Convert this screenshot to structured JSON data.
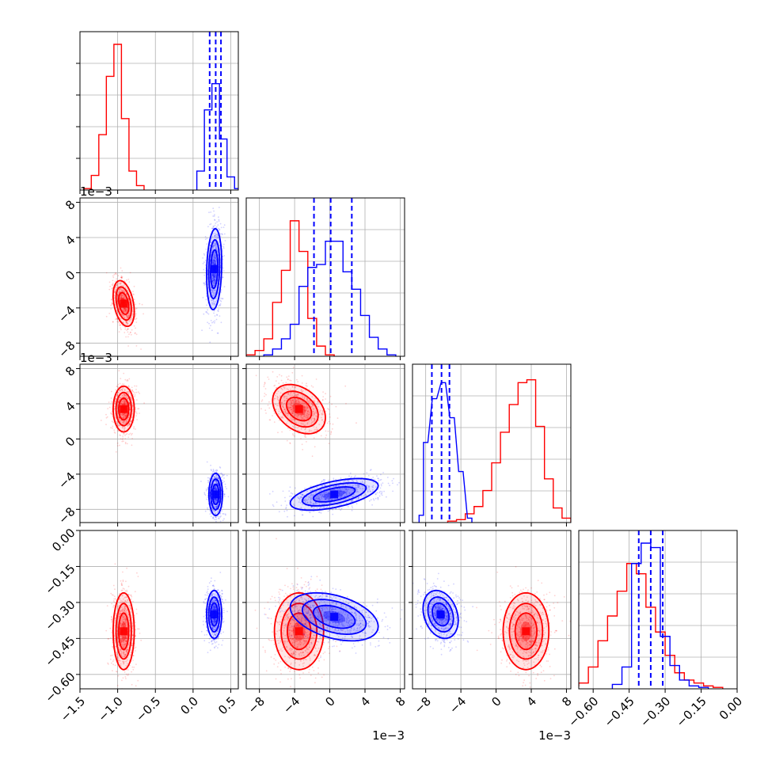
{
  "chart_data": {
    "type": "corner",
    "series_colors": [
      "#ff0000",
      "#0000ff"
    ],
    "variables": [
      {
        "range": [
          -1.5,
          0.6
        ],
        "ticks": [
          -1.5,
          -1.0,
          -0.5,
          0.0,
          0.5
        ],
        "tick_labels": [
          "−1.5",
          "−1.0",
          "−0.5",
          "0.0",
          "0.5"
        ],
        "offset": ""
      },
      {
        "range": [
          -9.5,
          8.5
        ],
        "ticks": [
          -8,
          -4,
          0,
          4,
          8
        ],
        "tick_labels": [
          "−8",
          "−4",
          "0",
          "4",
          "8"
        ],
        "offset": "1e−3"
      },
      {
        "range": [
          -9.5,
          8.5
        ],
        "ticks": [
          -8,
          -4,
          0,
          4,
          8
        ],
        "tick_labels": [
          "−8",
          "−4",
          "0",
          "4",
          "8"
        ],
        "offset": "1e−3"
      },
      {
        "range": [
          -0.66,
          0.0
        ],
        "ticks": [
          -0.6,
          -0.45,
          -0.3,
          -0.15,
          0.0
        ],
        "tick_labels": [
          "−0.60",
          "−0.45",
          "−0.30",
          "−0.15",
          "0.00"
        ],
        "offset": ""
      }
    ],
    "hist": [
      {
        "red": [
          [
            -1.4,
            0.01
          ],
          [
            -1.3,
            0.1
          ],
          [
            -1.2,
            0.38
          ],
          [
            -1.1,
            0.78
          ],
          [
            -1.0,
            1.0
          ],
          [
            -0.9,
            0.49
          ],
          [
            -0.8,
            0.13
          ],
          [
            -0.7,
            0.03
          ]
        ],
        "blue": [
          [
            0.1,
            0.13
          ],
          [
            0.2,
            0.55
          ],
          [
            0.3,
            0.73
          ],
          [
            0.4,
            0.35
          ],
          [
            0.5,
            0.09
          ],
          [
            0.6,
            0.01
          ]
        ],
        "blue_quantiles": [
          0.22,
          0.3,
          0.37
        ]
      },
      {
        "red": [
          [
            -9,
            0.01
          ],
          [
            -8,
            0.04
          ],
          [
            -7,
            0.12
          ],
          [
            -6,
            0.37
          ],
          [
            -5,
            0.59
          ],
          [
            -4,
            0.93
          ],
          [
            -3,
            0.72
          ],
          [
            -2,
            0.26
          ],
          [
            -1,
            0.07
          ],
          [
            0,
            0.01
          ]
        ],
        "blue": [
          [
            -7,
            0.01
          ],
          [
            -6,
            0.05
          ],
          [
            -5,
            0.12
          ],
          [
            -4,
            0.22
          ],
          [
            -3,
            0.48
          ],
          [
            -2,
            0.61
          ],
          [
            -1,
            0.63
          ],
          [
            0,
            0.79
          ],
          [
            1,
            0.79
          ],
          [
            2,
            0.58
          ],
          [
            3,
            0.46
          ],
          [
            4,
            0.28
          ],
          [
            5,
            0.13
          ],
          [
            6,
            0.05
          ],
          [
            7,
            0.01
          ]
        ],
        "blue_quantiles": [
          -1.8,
          0.1,
          2.5
        ]
      },
      {
        "red": [
          [
            -5,
            0.01
          ],
          [
            -4,
            0.02
          ],
          [
            -3,
            0.06
          ],
          [
            -2,
            0.11
          ],
          [
            -1,
            0.22
          ],
          [
            0,
            0.41
          ],
          [
            1,
            0.62
          ],
          [
            2,
            0.81
          ],
          [
            3,
            0.96
          ],
          [
            4,
            0.98
          ],
          [
            5,
            0.66
          ],
          [
            6,
            0.3
          ],
          [
            7,
            0.1
          ],
          [
            8,
            0.03
          ]
        ],
        "blue": [
          [
            -8.5,
            0.05
          ],
          [
            -8,
            0.55
          ],
          [
            -7,
            0.85
          ],
          [
            -6,
            0.96
          ],
          [
            -5,
            0.72
          ],
          [
            -4,
            0.35
          ],
          [
            -3,
            0.03
          ]
        ],
        "blue_quantiles": [
          -7.3,
          -6.2,
          -5.3
        ]
      },
      {
        "red": [
          [
            -0.68,
            0.02
          ],
          [
            -0.64,
            0.04
          ],
          [
            -0.6,
            0.15
          ],
          [
            -0.56,
            0.33
          ],
          [
            -0.52,
            0.5
          ],
          [
            -0.48,
            0.67
          ],
          [
            -0.44,
            0.86
          ],
          [
            -0.4,
            0.79
          ],
          [
            -0.36,
            0.56
          ],
          [
            -0.32,
            0.39
          ],
          [
            -0.28,
            0.23
          ],
          [
            -0.24,
            0.11
          ],
          [
            -0.2,
            0.06
          ],
          [
            -0.16,
            0.04
          ],
          [
            -0.12,
            0.02
          ],
          [
            -0.08,
            0.01
          ]
        ],
        "blue": [
          [
            -0.5,
            0.03
          ],
          [
            -0.46,
            0.15
          ],
          [
            -0.42,
            0.86
          ],
          [
            -0.38,
            1.0
          ],
          [
            -0.34,
            0.97
          ],
          [
            -0.3,
            0.36
          ],
          [
            -0.26,
            0.16
          ],
          [
            -0.22,
            0.06
          ],
          [
            -0.18,
            0.02
          ],
          [
            -0.14,
            0.01
          ]
        ],
        "blue_quantiles": [
          -0.41,
          -0.36,
          -0.31
        ]
      }
    ],
    "pairs": [
      {
        "row": 1,
        "col": 0,
        "red": {
          "mean": [
            -0.92,
            -3.5
          ],
          "sd": [
            0.07,
            1.3
          ],
          "rho": -0.35
        },
        "blue": {
          "mean": [
            0.28,
            0.4
          ],
          "sd": [
            0.05,
            2.3
          ],
          "rho": 0.15
        }
      },
      {
        "row": 2,
        "col": 0,
        "red": {
          "mean": [
            -0.92,
            3.4
          ],
          "sd": [
            0.07,
            1.3
          ],
          "rho": 0.0
        },
        "blue": {
          "mean": [
            0.3,
            -6.3
          ],
          "sd": [
            0.045,
            1.2
          ],
          "rho": 0.0
        }
      },
      {
        "row": 2,
        "col": 1,
        "red": {
          "mean": [
            -3.5,
            3.4
          ],
          "sd": [
            1.5,
            1.4
          ],
          "rho": -0.35
        },
        "blue": {
          "mean": [
            0.5,
            -6.3
          ],
          "sd": [
            2.5,
            0.9
          ],
          "rho": 0.55
        }
      },
      {
        "row": 3,
        "col": 0,
        "red": {
          "mean": [
            -0.92,
            -0.42
          ],
          "sd": [
            0.07,
            0.08
          ],
          "rho": 0.0
        },
        "blue": {
          "mean": [
            0.28,
            -0.35
          ],
          "sd": [
            0.05,
            0.05
          ],
          "rho": 0.0
        }
      },
      {
        "row": 3,
        "col": 1,
        "red": {
          "mean": [
            -3.5,
            -0.42
          ],
          "sd": [
            1.4,
            0.08
          ],
          "rho": 0.0
        },
        "blue": {
          "mean": [
            0.5,
            -0.36
          ],
          "sd": [
            2.5,
            0.05
          ],
          "rho": -0.4
        }
      },
      {
        "row": 3,
        "col": 2,
        "red": {
          "mean": [
            3.4,
            -0.42
          ],
          "sd": [
            1.3,
            0.08
          ],
          "rho": 0.0
        },
        "blue": {
          "mean": [
            -6.3,
            -0.35
          ],
          "sd": [
            1.0,
            0.05
          ],
          "rho": -0.25
        }
      }
    ]
  }
}
